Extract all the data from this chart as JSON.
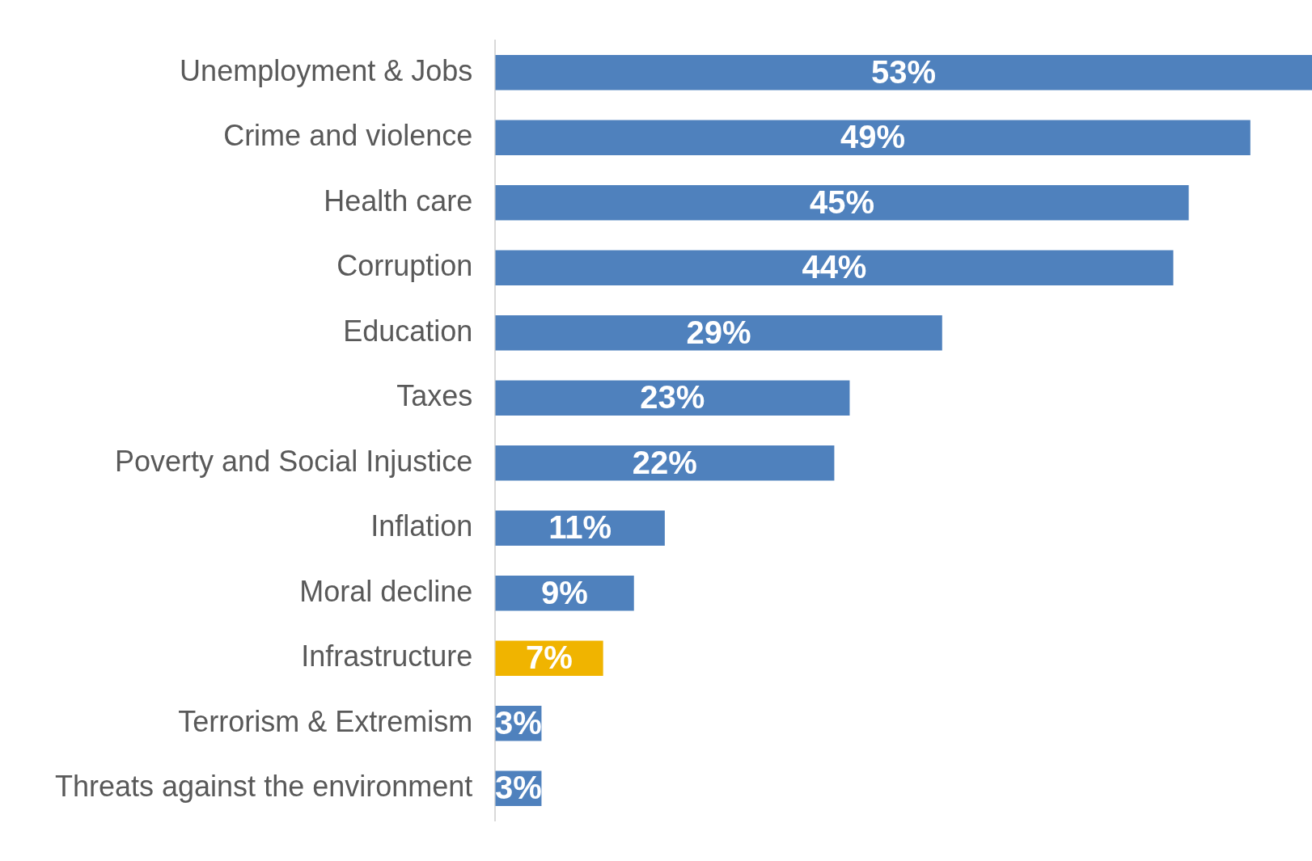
{
  "chart_data": {
    "type": "bar",
    "orientation": "horizontal",
    "categories": [
      "Unemployment & Jobs",
      "Crime and violence",
      "Health care",
      "Corruption",
      "Education",
      "Taxes",
      "Poverty and Social Injustice",
      "Inflation",
      "Moral decline",
      "Infrastructure",
      "Terrorism & Extremism",
      "Threats against the environment"
    ],
    "values": [
      53,
      49,
      45,
      44,
      29,
      23,
      22,
      11,
      9,
      7,
      3,
      3
    ],
    "value_labels": [
      "53%",
      "49%",
      "45%",
      "44%",
      "29%",
      "23%",
      "22%",
      "11%",
      "9%",
      "7%",
      "3%",
      "3%"
    ],
    "colors": [
      "#4f81bd",
      "#4f81bd",
      "#4f81bd",
      "#4f81bd",
      "#4f81bd",
      "#4f81bd",
      "#4f81bd",
      "#4f81bd",
      "#4f81bd",
      "#f0b400",
      "#4f81bd",
      "#4f81bd"
    ],
    "tick_labels": "y",
    "grid": false,
    "legend": false
  }
}
